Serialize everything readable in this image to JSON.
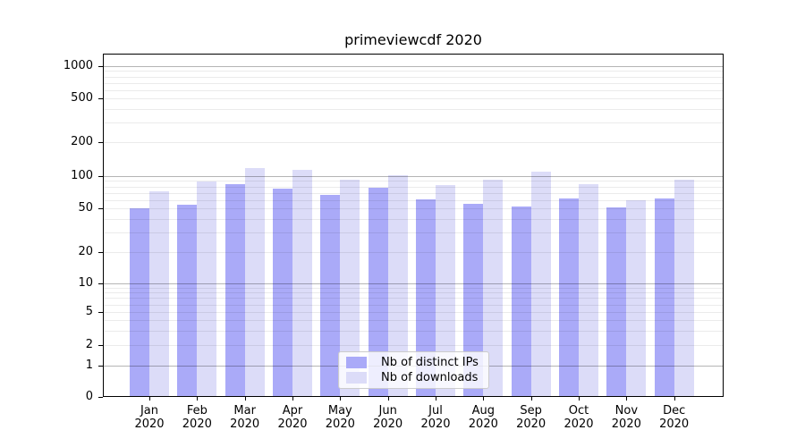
{
  "chart_data": {
    "type": "bar",
    "title": "primeviewcdf 2020",
    "categories": [
      "Jan",
      "Feb",
      "Mar",
      "Apr",
      "May",
      "Jun",
      "Jul",
      "Aug",
      "Sep",
      "Oct",
      "Nov",
      "Dec"
    ],
    "year_label": "2020",
    "series": [
      {
        "name": "Nb of distinct IPs",
        "color": "#aaaaf8",
        "values": [
          50,
          54,
          84,
          76,
          67,
          78,
          61,
          55,
          52,
          62,
          51,
          62
        ]
      },
      {
        "name": "Nb of downloads",
        "color": "#dcdcf8",
        "values": [
          72,
          89,
          118,
          113,
          93,
          102,
          82,
          92,
          109,
          84,
          59,
          93
        ]
      }
    ],
    "yscale": "asinh (log above 1, linear 0-1)",
    "yticks": [
      0,
      1,
      2,
      5,
      10,
      20,
      50,
      100,
      200,
      500,
      1000
    ],
    "ylim": [
      0,
      1300
    ],
    "grid": true,
    "legend_position": "inside lower center"
  },
  "legend": {
    "items": [
      {
        "label": "Nb of distinct IPs"
      },
      {
        "label": "Nb of downloads"
      }
    ]
  },
  "colors": {
    "bar_distinct_ips": "#aaaaf8",
    "bar_downloads": "#dcdcf8",
    "grid_major": "#b5b5b5",
    "grid_minor": "#ebebeb",
    "axis": "#000000"
  }
}
